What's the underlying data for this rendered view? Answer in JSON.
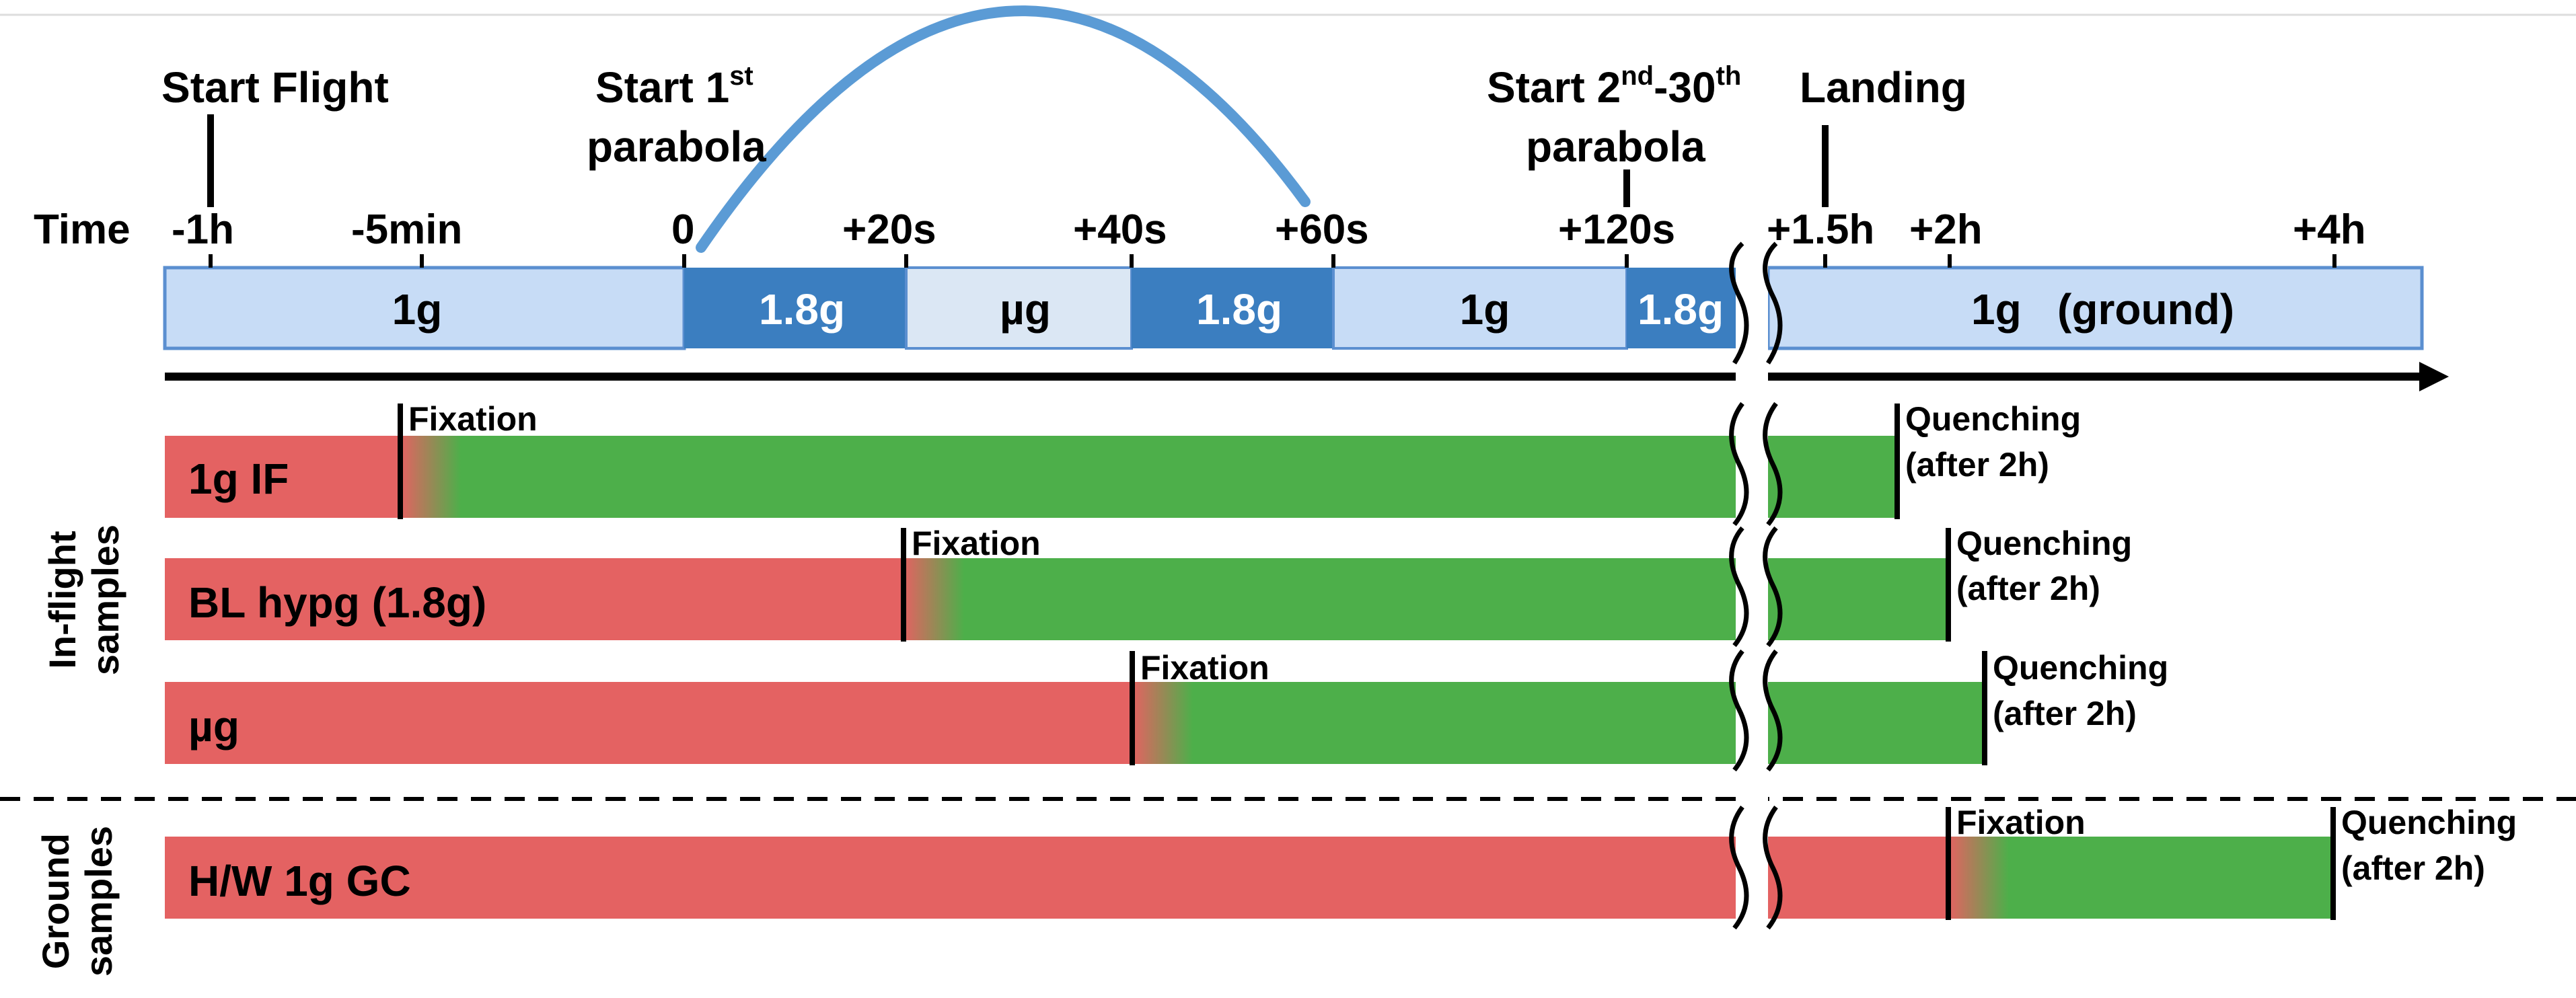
{
  "colors": {
    "axis": "#000000",
    "seg_1g": "#c7dcf6",
    "seg_1g_border": "#5b8fd0",
    "seg_hyper": "#3b7ec0",
    "seg_micro": "#dbe7f4",
    "parabola": "#5b9bd5",
    "pre_fixation": "#e46262",
    "post_fixation": "#4daf4a"
  },
  "events": {
    "start_flight": "Start Flight",
    "start_first_line1": "Start 1",
    "start_first_sup": "st",
    "start_first_line2": "parabola",
    "start_multi_a": "Start 2",
    "start_multi_sup1": "nd",
    "start_multi_b": "-30",
    "start_multi_sup2": "th",
    "start_multi_line2": "parabola",
    "landing": "Landing"
  },
  "time_label": "Time",
  "ticks": [
    "-1h",
    "-5min",
    "0",
    "+20s",
    "+40s",
    "+60s",
    "+120s",
    "+1.5h",
    "+2h",
    "+4h"
  ],
  "segments": [
    "1g",
    "1.8g",
    "µg",
    "1.8g",
    "1g",
    "1.8g",
    "1g   (ground)"
  ],
  "samples": [
    {
      "label": "1g IF",
      "fixation": "Fixation",
      "quench1": "Quenching",
      "quench2": "(after 2h)"
    },
    {
      "label": "BL hypg (1.8g)",
      "fixation": "Fixation",
      "quench1": "Quenching",
      "quench2": "(after 2h)"
    },
    {
      "label": "µg",
      "fixation": "Fixation",
      "quench1": "Quenching",
      "quench2": "(after 2h)"
    },
    {
      "label": "H/W 1g GC",
      "fixation": "Fixation",
      "quench1": "Quenching",
      "quench2": "(after 2h)"
    }
  ],
  "groups": {
    "inflight_line1": "In-flight",
    "inflight_line2": "samples",
    "ground_line1": "Ground",
    "ground_line2": "samples"
  }
}
